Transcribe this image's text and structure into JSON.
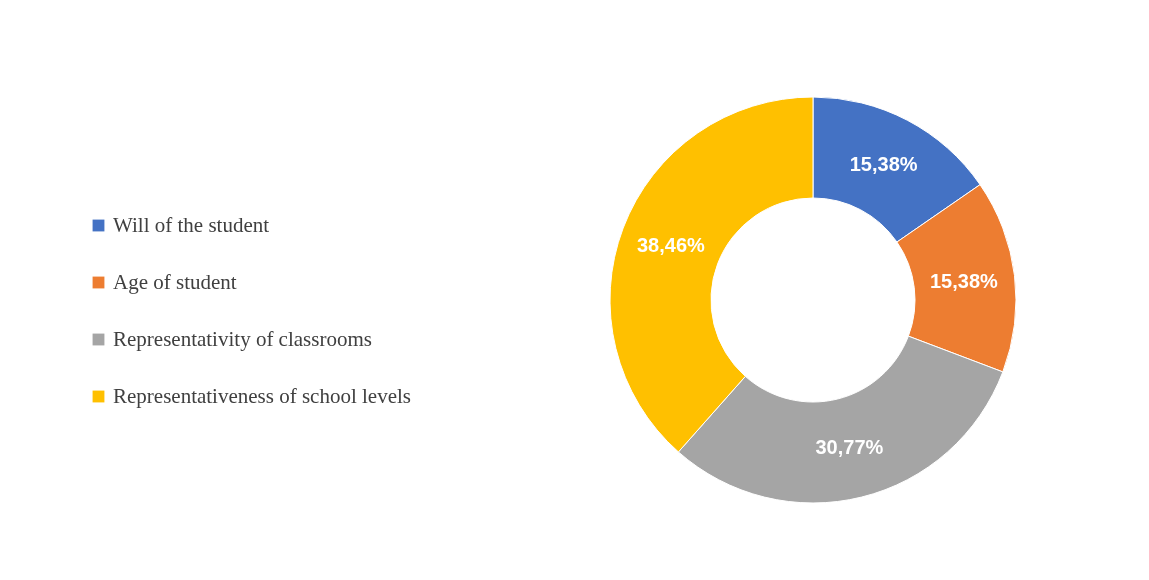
{
  "chart_data": {
    "type": "donut",
    "categories": [
      "Will of the student",
      "Age of student",
      "Representativity of classrooms",
      "Representativeness of school levels"
    ],
    "values": [
      15.38,
      15.38,
      30.77,
      38.46
    ],
    "colors": [
      "#4472c4",
      "#ed7d31",
      "#a5a5a5",
      "#ffc000"
    ],
    "value_labels": [
      "15,38%",
      "15,38%",
      "30,77%",
      "38,46%"
    ],
    "legend": "left"
  }
}
